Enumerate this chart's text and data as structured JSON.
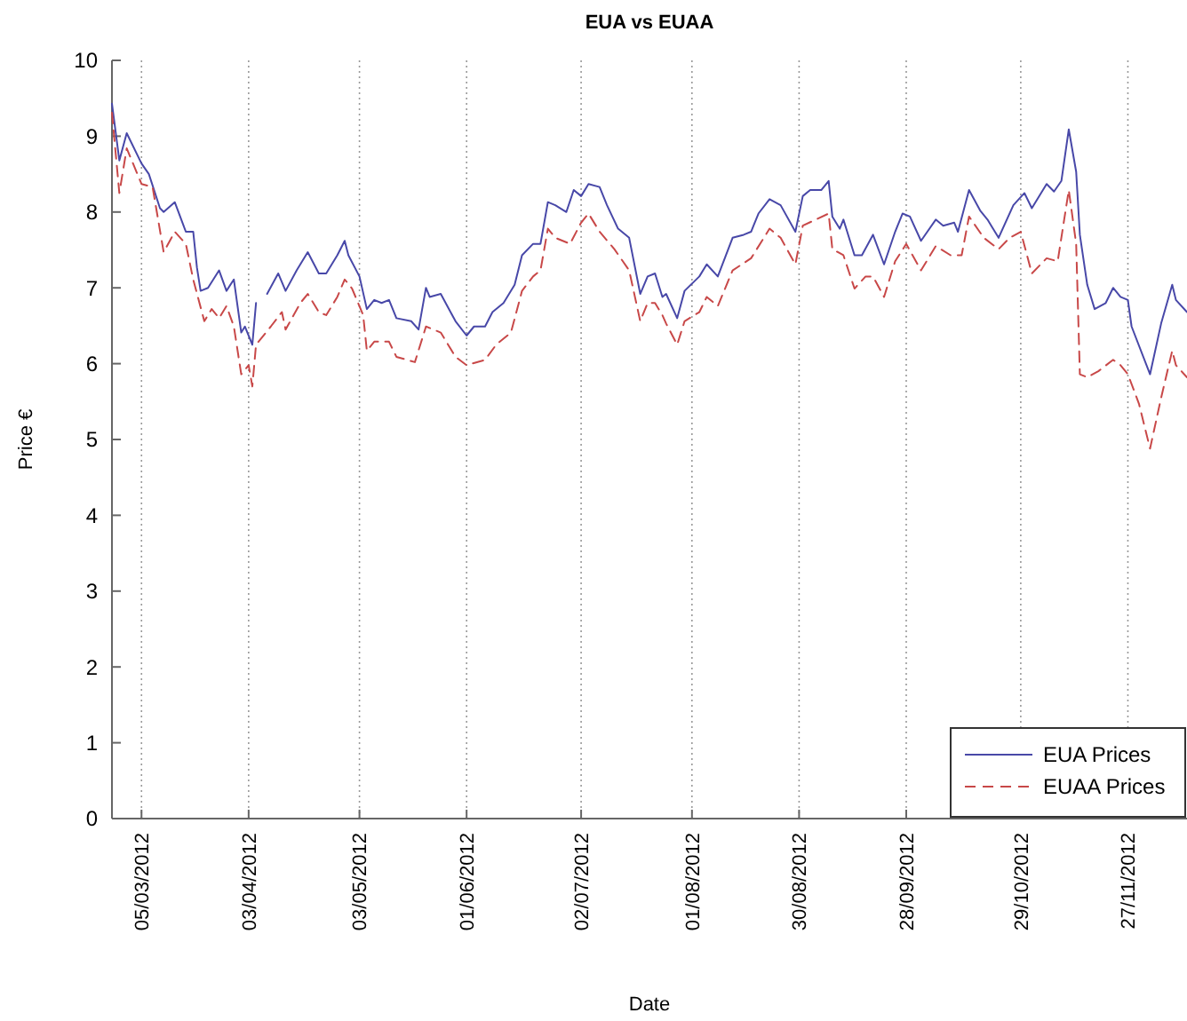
{
  "chart_data": {
    "type": "line",
    "title": "EUA vs EUAA",
    "xlabel": "Date",
    "ylabel": "Price €",
    "xlim": [
      "2012-02-26",
      "2012-12-13"
    ],
    "xticks": [
      {
        "value": "2012-03-05",
        "label": "05/03/2012"
      },
      {
        "value": "2012-04-03",
        "label": "03/04/2012"
      },
      {
        "value": "2012-05-03",
        "label": "03/05/2012"
      },
      {
        "value": "2012-06-01",
        "label": "01/06/2012"
      },
      {
        "value": "2012-07-02",
        "label": "02/07/2012"
      },
      {
        "value": "2012-08-01",
        "label": "01/08/2012"
      },
      {
        "value": "2012-08-30",
        "label": "30/08/2012"
      },
      {
        "value": "2012-09-28",
        "label": "28/09/2012"
      },
      {
        "value": "2012-10-29",
        "label": "29/10/2012"
      },
      {
        "value": "2012-11-27",
        "label": "27/11/2012"
      }
    ],
    "ylim": [
      0,
      10
    ],
    "yticks": [
      0,
      1,
      2,
      3,
      4,
      5,
      6,
      7,
      8,
      9,
      10
    ],
    "grid": "x",
    "legend": "bottom right",
    "series": [
      {
        "name": "EUA Prices",
        "color": "#4848a8",
        "line_style": "solid",
        "x": [
          "2012-02-26",
          "2012-02-28",
          "2012-03-01",
          "2012-03-05",
          "2012-03-07",
          "2012-03-10",
          "2012-03-11",
          "2012-03-14",
          "2012-03-17",
          "2012-03-19",
          "2012-03-20",
          "2012-03-21",
          "2012-03-23",
          "2012-03-26",
          "2012-03-28",
          "2012-03-30",
          "2012-04-01",
          "2012-04-02",
          "2012-04-04",
          "2012-04-05",
          "2012-04-06",
          "2012-04-08",
          "2012-04-11",
          "2012-04-13",
          "2012-04-16",
          "2012-04-19",
          "2012-04-22",
          "2012-04-24",
          "2012-04-27",
          "2012-04-29",
          "2012-04-30",
          "2012-05-03",
          "2012-05-05",
          "2012-05-07",
          "2012-05-09",
          "2012-05-11",
          "2012-05-13",
          "2012-05-17",
          "2012-05-19",
          "2012-05-21",
          "2012-05-22",
          "2012-05-25",
          "2012-05-29",
          "2012-06-01",
          "2012-06-03",
          "2012-06-06",
          "2012-06-08",
          "2012-06-11",
          "2012-06-14",
          "2012-06-16",
          "2012-06-19",
          "2012-06-21",
          "2012-06-23",
          "2012-06-25",
          "2012-06-28",
          "2012-06-30",
          "2012-07-02",
          "2012-07-04",
          "2012-07-07",
          "2012-07-09",
          "2012-07-12",
          "2012-07-15",
          "2012-07-18",
          "2012-07-20",
          "2012-07-22",
          "2012-07-24",
          "2012-07-25",
          "2012-07-28",
          "2012-07-30",
          "2012-08-03",
          "2012-08-05",
          "2012-08-08",
          "2012-08-12",
          "2012-08-15",
          "2012-08-17",
          "2012-08-19",
          "2012-08-22",
          "2012-08-25",
          "2012-08-29",
          "2012-08-31",
          "2012-09-02",
          "2012-09-05",
          "2012-09-07",
          "2012-09-08",
          "2012-09-10",
          "2012-09-11",
          "2012-09-14",
          "2012-09-16",
          "2012-09-19",
          "2012-09-22",
          "2012-09-25",
          "2012-09-27",
          "2012-09-29",
          "2012-10-02",
          "2012-10-06",
          "2012-10-08",
          "2012-10-11",
          "2012-10-12",
          "2012-10-15",
          "2012-10-18",
          "2012-10-20",
          "2012-10-23",
          "2012-10-27",
          "2012-10-30",
          "2012-11-01",
          "2012-11-05",
          "2012-11-07",
          "2012-11-09",
          "2012-11-11",
          "2012-11-13",
          "2012-11-14",
          "2012-11-16",
          "2012-11-18",
          "2012-11-21",
          "2012-11-23",
          "2012-11-25",
          "2012-11-27",
          "2012-11-28",
          "2012-12-03",
          "2012-12-06",
          "2012-12-09",
          "2012-12-10",
          "2012-12-13"
        ],
        "values": [
          9.43,
          8.68,
          9.04,
          8.64,
          8.5,
          8.05,
          8.0,
          8.13,
          7.74,
          7.74,
          7.27,
          6.96,
          7.0,
          7.23,
          6.96,
          7.11,
          6.41,
          6.49,
          6.25,
          6.8,
          null,
          6.92,
          7.19,
          6.96,
          7.23,
          7.47,
          7.19,
          7.19,
          7.43,
          7.62,
          7.43,
          7.15,
          6.72,
          6.84,
          6.8,
          6.84,
          6.6,
          6.56,
          6.45,
          7.0,
          6.88,
          6.92,
          6.56,
          6.37,
          6.49,
          6.49,
          6.68,
          6.8,
          7.04,
          7.43,
          7.58,
          7.58,
          8.13,
          8.09,
          8.0,
          8.29,
          8.21,
          8.37,
          8.33,
          8.09,
          7.78,
          7.66,
          6.92,
          7.15,
          7.19,
          6.88,
          6.92,
          6.6,
          6.96,
          7.15,
          7.31,
          7.15,
          7.66,
          7.7,
          7.74,
          7.98,
          8.17,
          8.09,
          7.74,
          8.21,
          8.29,
          8.29,
          8.41,
          7.94,
          7.78,
          7.9,
          7.43,
          7.43,
          7.7,
          7.31,
          7.74,
          7.98,
          7.94,
          7.62,
          7.9,
          7.82,
          7.86,
          7.74,
          8.29,
          8.02,
          7.9,
          7.66,
          8.09,
          8.25,
          8.05,
          8.37,
          8.27,
          8.41,
          9.09,
          8.53,
          7.7,
          7.04,
          6.72,
          6.8,
          7.0,
          6.88,
          6.84,
          6.49,
          5.86,
          6.53,
          7.04,
          6.84,
          6.68
        ]
      },
      {
        "name": "EUAA Prices",
        "color": "#c84848",
        "line_style": "dashed",
        "x": [
          "2012-02-26",
          "2012-02-28",
          "2012-03-01",
          "2012-03-05",
          "2012-03-08",
          "2012-03-11",
          "2012-03-14",
          "2012-03-17",
          "2012-03-19",
          "2012-03-22",
          "2012-03-24",
          "2012-03-26",
          "2012-03-28",
          "2012-03-30",
          "2012-04-01",
          "2012-04-03",
          "2012-04-04",
          "2012-04-05",
          "2012-04-09",
          "2012-04-12",
          "2012-04-13",
          "2012-04-17",
          "2012-04-19",
          "2012-04-22",
          "2012-04-24",
          "2012-04-27",
          "2012-04-29",
          "2012-05-01",
          "2012-05-04",
          "2012-05-05",
          "2012-05-07",
          "2012-05-11",
          "2012-05-13",
          "2012-05-18",
          "2012-05-21",
          "2012-05-25",
          "2012-05-29",
          "2012-06-01",
          "2012-06-06",
          "2012-06-09",
          "2012-06-13",
          "2012-06-16",
          "2012-06-19",
          "2012-06-21",
          "2012-06-23",
          "2012-06-25",
          "2012-06-29",
          "2012-07-02",
          "2012-07-04",
          "2012-07-07",
          "2012-07-11",
          "2012-07-15",
          "2012-07-18",
          "2012-07-20",
          "2012-07-22",
          "2012-07-24",
          "2012-07-25",
          "2012-07-28",
          "2012-07-30",
          "2012-08-03",
          "2012-08-05",
          "2012-08-08",
          "2012-08-12",
          "2012-08-17",
          "2012-08-22",
          "2012-08-25",
          "2012-08-29",
          "2012-08-31",
          "2012-09-07",
          "2012-09-08",
          "2012-09-11",
          "2012-09-14",
          "2012-09-17",
          "2012-09-19",
          "2012-09-22",
          "2012-09-25",
          "2012-09-28",
          "2012-10-02",
          "2012-10-06",
          "2012-10-10",
          "2012-10-13",
          "2012-10-15",
          "2012-10-19",
          "2012-10-23",
          "2012-10-26",
          "2012-10-29",
          "2012-11-01",
          "2012-11-05",
          "2012-11-08",
          "2012-11-11",
          "2012-11-13",
          "2012-11-14",
          "2012-11-16",
          "2012-11-19",
          "2012-11-23",
          "2012-11-25",
          "2012-11-27",
          "2012-11-30",
          "2012-12-03",
          "2012-12-06",
          "2012-12-09",
          "2012-12-10",
          "2012-12-13"
        ],
        "values": [
          9.31,
          8.25,
          8.84,
          8.37,
          8.33,
          7.47,
          7.74,
          7.58,
          7.11,
          6.56,
          6.72,
          6.6,
          6.76,
          6.49,
          5.86,
          5.98,
          5.7,
          6.25,
          6.49,
          6.68,
          6.45,
          6.8,
          6.92,
          6.68,
          6.64,
          6.88,
          7.11,
          6.99,
          6.64,
          6.17,
          6.29,
          6.29,
          6.09,
          6.02,
          6.49,
          6.41,
          6.09,
          5.98,
          6.05,
          6.25,
          6.41,
          6.96,
          7.15,
          7.23,
          7.78,
          7.66,
          7.58,
          7.86,
          7.98,
          7.74,
          7.51,
          7.23,
          6.56,
          6.8,
          6.8,
          6.64,
          6.53,
          6.25,
          6.56,
          6.68,
          6.88,
          6.76,
          7.23,
          7.39,
          7.78,
          7.66,
          7.31,
          7.82,
          7.98,
          7.51,
          7.43,
          6.99,
          7.15,
          7.15,
          6.88,
          7.35,
          7.58,
          7.23,
          7.55,
          7.43,
          7.43,
          7.94,
          7.66,
          7.51,
          7.66,
          7.74,
          7.19,
          7.39,
          7.35,
          8.29,
          7.58,
          5.86,
          5.82,
          5.9,
          6.05,
          5.98,
          5.86,
          5.47,
          4.88,
          5.55,
          6.17,
          5.98,
          5.82
        ]
      }
    ]
  }
}
